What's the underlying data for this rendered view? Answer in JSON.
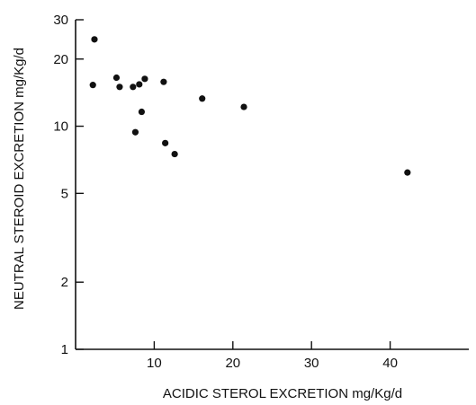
{
  "chart_data": {
    "type": "scatter",
    "title": "",
    "xlabel": "ACIDIC STEROL EXCRETION mg/Kg/d",
    "ylabel": "NEUTRAL STEROID EXCRETION mg/Kg/d",
    "xlim": [
      0,
      50
    ],
    "ylim": [
      1,
      30
    ],
    "y_scale": "log",
    "grid": false,
    "xticks": [
      10,
      20,
      30,
      40
    ],
    "xtick_labels": [
      "10",
      "20",
      "30",
      "40"
    ],
    "yticks": [
      1,
      2,
      5,
      10,
      20,
      30
    ],
    "ytick_labels": [
      "1",
      "2",
      "5",
      "10",
      "20",
      "30"
    ],
    "point_color": "#111111",
    "points": [
      {
        "x": 2.4,
        "y": 24.5
      },
      {
        "x": 2.2,
        "y": 15.3
      },
      {
        "x": 5.2,
        "y": 16.5
      },
      {
        "x": 5.6,
        "y": 15.0
      },
      {
        "x": 7.3,
        "y": 15.0
      },
      {
        "x": 8.1,
        "y": 15.4
      },
      {
        "x": 8.8,
        "y": 16.3
      },
      {
        "x": 11.2,
        "y": 15.8
      },
      {
        "x": 8.4,
        "y": 11.6
      },
      {
        "x": 7.6,
        "y": 9.4
      },
      {
        "x": 11.4,
        "y": 8.4
      },
      {
        "x": 12.6,
        "y": 7.5
      },
      {
        "x": 16.1,
        "y": 13.3
      },
      {
        "x": 21.4,
        "y": 12.2
      },
      {
        "x": 42.2,
        "y": 6.2
      }
    ]
  }
}
